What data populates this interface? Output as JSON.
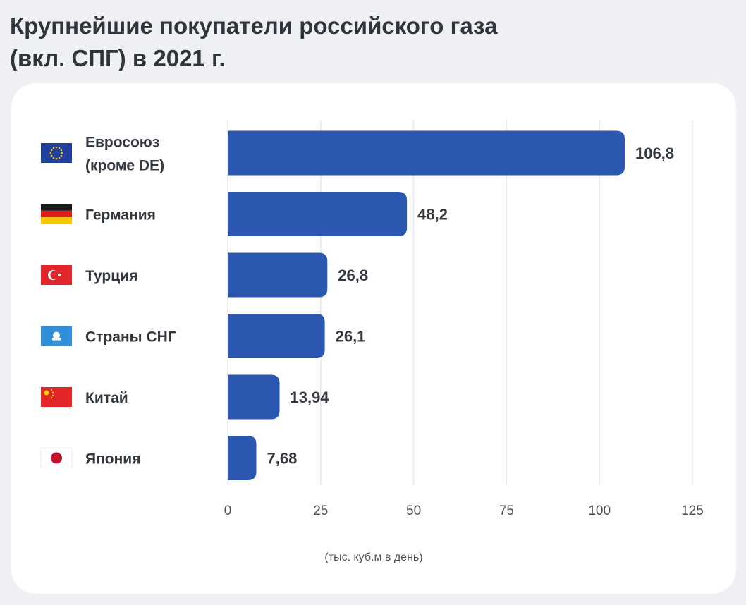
{
  "title_lines": [
    "Крупнейшие покупатели российского газа",
    "(вкл. СПГ) в 2021 г."
  ],
  "chart_data": {
    "type": "bar",
    "orientation": "horizontal",
    "title": "Крупнейшие покупатели российского газа (вкл. СПГ) в 2021 г.",
    "categories": [
      {
        "label_lines": [
          "Евросоюз",
          "(кроме DE)"
        ],
        "flag": "eu-flag-icon"
      },
      {
        "label_lines": [
          "Германия"
        ],
        "flag": "germany-flag-icon"
      },
      {
        "label_lines": [
          "Турция"
        ],
        "flag": "turkey-flag-icon"
      },
      {
        "label_lines": [
          "Страны СНГ"
        ],
        "flag": "cis-flag-icon"
      },
      {
        "label_lines": [
          "Китай"
        ],
        "flag": "china-flag-icon"
      },
      {
        "label_lines": [
          "Япония"
        ],
        "flag": "japan-flag-icon"
      }
    ],
    "values": [
      106.8,
      48.2,
      26.8,
      26.1,
      13.94,
      7.68
    ],
    "value_labels": [
      "106,8",
      "48,2",
      "26,8",
      "26,1",
      "13,94",
      "7,68"
    ],
    "xlim": [
      0,
      125
    ],
    "xticks": [
      0,
      25,
      50,
      75,
      100,
      125
    ],
    "xlabel": "(тыс. куб.м в день)",
    "ylabel": "",
    "grid": true,
    "legend": "none",
    "bar_color": "#2b57b1",
    "grid_color": "#e6e8ec"
  }
}
